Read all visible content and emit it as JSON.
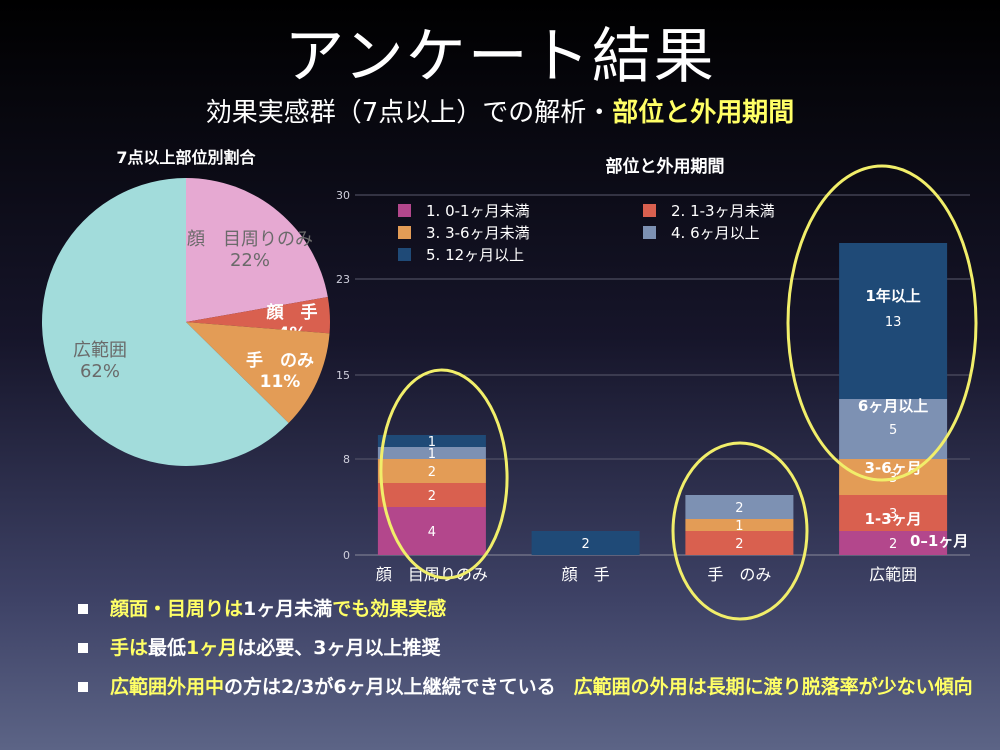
{
  "title": "アンケート結果",
  "subtitle": {
    "main": "効果実感群（7点以上）での解析・",
    "highlight": "部位と外用期間"
  },
  "chart_data": [
    {
      "type": "pie",
      "title": "7点以上部位別割合",
      "slices": [
        {
          "label": "顔　目周りのみ",
          "value": 22,
          "display": "22%",
          "color": "#e6a9d2",
          "label_color": "#6a6a6a",
          "bold": false
        },
        {
          "label": "顔　手",
          "value": 4,
          "display": "4%",
          "color": "#d9604f",
          "label_color": "#ffffff",
          "bold": true
        },
        {
          "label": "手　のみ",
          "value": 11,
          "display": "11%",
          "color": "#e39c56",
          "label_color": "#ffffff",
          "bold": true
        },
        {
          "label": "広範囲",
          "value": 62,
          "display": "62%",
          "color": "#a2dcdb",
          "label_color": "#6a6a6a",
          "bold": false
        }
      ]
    },
    {
      "type": "bar",
      "stacked": true,
      "title": "部位と外用期間",
      "categories": [
        "顔　目周りのみ",
        "顔　手",
        "手　のみ",
        "広範囲"
      ],
      "ylim": [
        0,
        30
      ],
      "yticks": [
        0,
        8,
        15,
        23,
        30
      ],
      "grid": true,
      "legend": "top-left",
      "series": [
        {
          "name": "1. 0-1ヶ月未満",
          "color": "#b3478c",
          "values": [
            4,
            0,
            0,
            2
          ]
        },
        {
          "name": "2. 1-3ヶ月未満",
          "color": "#d9604f",
          "values": [
            2,
            0,
            2,
            3
          ]
        },
        {
          "name": "3. 3-6ヶ月未満",
          "color": "#e39c56",
          "values": [
            2,
            0,
            1,
            3
          ]
        },
        {
          "name": "4. 6ヶ月以上",
          "color": "#7d91b3",
          "values": [
            1,
            0,
            2,
            5
          ]
        },
        {
          "name": "5. 12ヶ月以上",
          "color": "#1f4a77",
          "values": [
            1,
            2,
            0,
            13
          ]
        }
      ],
      "annotations": [
        "0–1ヶ月",
        "1-3ヶ月",
        "3-6ヶ月",
        "6ヶ月以上",
        "1年以上"
      ]
    }
  ],
  "bullets": [
    {
      "parts": [
        {
          "t": "顔面・目周りは",
          "y": true
        },
        {
          "t": "1ヶ月未満",
          "y": false
        },
        {
          "t": "でも効果実感",
          "y": true
        }
      ]
    },
    {
      "parts": [
        {
          "t": "手は",
          "y": true
        },
        {
          "t": "最低",
          "y": false
        },
        {
          "t": "1ヶ月",
          "y": true
        },
        {
          "t": "は必要、",
          "y": false
        },
        {
          "t": "3ヶ月以上推奨",
          "y": false
        }
      ]
    },
    {
      "parts": [
        {
          "t": "広範囲外用中",
          "y": true
        },
        {
          "t": "の方は2/3が6ヶ月以上継続できている",
          "y": false
        },
        {
          "gap": true
        },
        {
          "t": "広範囲の外用は長期に渡り脱落率が少ない傾向",
          "y": true
        }
      ]
    }
  ]
}
